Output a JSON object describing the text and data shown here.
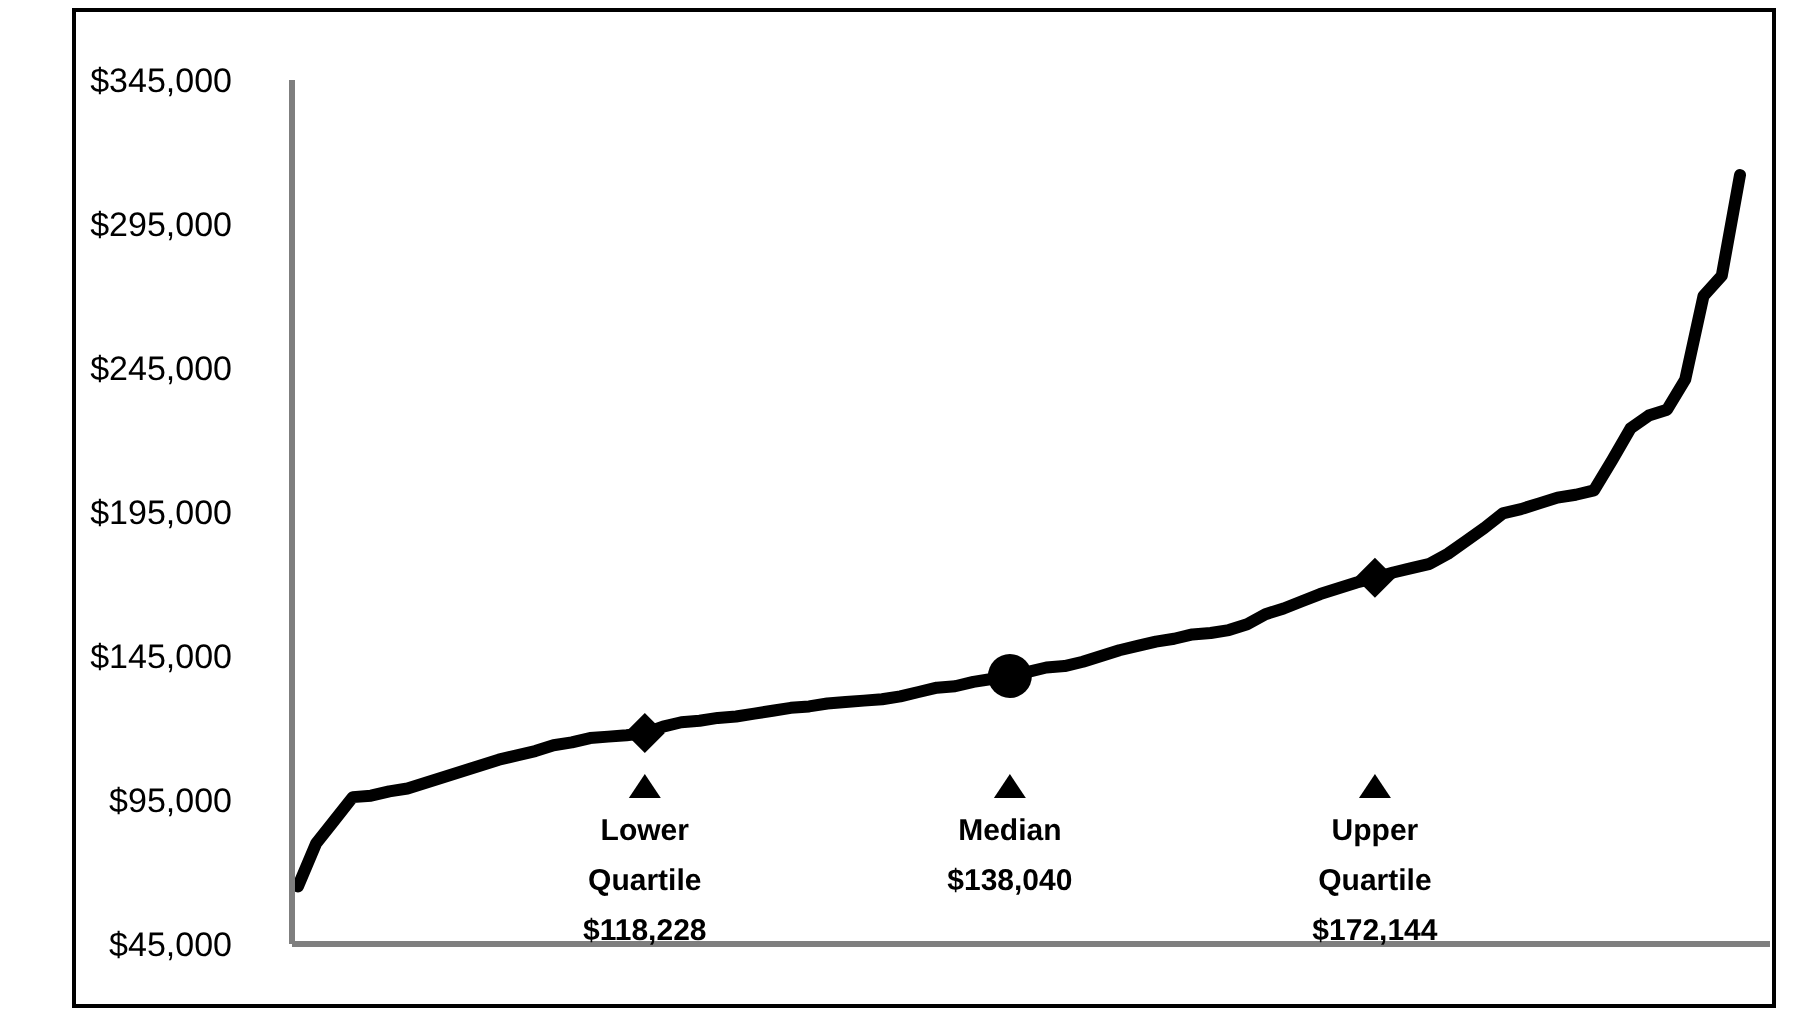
{
  "chart_data": {
    "type": "line",
    "categories": [
      null,
      null,
      null,
      null,
      null,
      null,
      null,
      null,
      null,
      null,
      null,
      null,
      null,
      null,
      null,
      null,
      null,
      null,
      null,
      null,
      null,
      null,
      null,
      null,
      null,
      null,
      null,
      null,
      null,
      null,
      null,
      null,
      null,
      null,
      null,
      null,
      null,
      null,
      null,
      null,
      null,
      null,
      null,
      null,
      null,
      null,
      null,
      null,
      null,
      null,
      null,
      null,
      null,
      null,
      null,
      null,
      null,
      null,
      null,
      null,
      null,
      null,
      null,
      null,
      null,
      null,
      null,
      null,
      null,
      null,
      null,
      null,
      null,
      null,
      null,
      null,
      null,
      null,
      null,
      null
    ],
    "ylim": [
      45000,
      345000
    ],
    "yticks": [
      {
        "value": 45000,
        "label": "$45,000"
      },
      {
        "value": 95000,
        "label": "$95,000"
      },
      {
        "value": 145000,
        "label": "$145,000"
      },
      {
        "value": 195000,
        "label": "$195,000"
      },
      {
        "value": 245000,
        "label": "$245,000"
      },
      {
        "value": 295000,
        "label": "$295,000"
      },
      {
        "value": 345000,
        "label": "$345,000"
      }
    ],
    "tick_labels": "y",
    "grid": false,
    "line_style": "solid",
    "marker": "none",
    "series": [
      {
        "color": "#000000",
        "values": [
          65000,
          80000,
          88000,
          96000,
          96500,
          98000,
          99000,
          101000,
          103000,
          105000,
          107000,
          109000,
          110500,
          112000,
          114000,
          115000,
          116500,
          117000,
          117500,
          118228,
          120500,
          122000,
          122500,
          123500,
          124000,
          125000,
          126000,
          127000,
          127500,
          128500,
          129000,
          129500,
          130000,
          131000,
          132500,
          134000,
          134500,
          136000,
          137000,
          138040,
          139500,
          141000,
          141500,
          143000,
          145000,
          147000,
          148500,
          150000,
          151000,
          152500,
          153000,
          154000,
          156000,
          159500,
          161500,
          164000,
          166500,
          168500,
          170500,
          172144,
          174000,
          175500,
          177000,
          180500,
          185000,
          189500,
          194500,
          196000,
          198000,
          200000,
          201000,
          202500,
          213000,
          224000,
          228500,
          230500,
          241000,
          270000,
          277000,
          312000
        ]
      },
      {
        "type": "scatter",
        "color": "#000000",
        "marker": "diamond",
        "values": [
          null,
          null,
          null,
          null,
          null,
          null,
          null,
          null,
          null,
          null,
          null,
          null,
          null,
          null,
          null,
          null,
          null,
          null,
          null,
          118228,
          null,
          null,
          null,
          null,
          null,
          null,
          null,
          null,
          null,
          null,
          null,
          null,
          null,
          null,
          null,
          null,
          null,
          null,
          null,
          null,
          null,
          null,
          null,
          null,
          null,
          null,
          null,
          null,
          null,
          null,
          null,
          null,
          null,
          null,
          null,
          null,
          null,
          null,
          null,
          172144,
          null,
          null,
          null,
          null,
          null,
          null,
          null,
          null,
          null,
          null,
          null,
          null,
          null,
          null,
          null,
          null,
          null,
          null,
          null,
          null
        ]
      },
      {
        "type": "scatter",
        "color": "#000000",
        "marker": "circle",
        "values": [
          null,
          null,
          null,
          null,
          null,
          null,
          null,
          null,
          null,
          null,
          null,
          null,
          null,
          null,
          null,
          null,
          null,
          null,
          null,
          null,
          null,
          null,
          null,
          null,
          null,
          null,
          null,
          null,
          null,
          null,
          null,
          null,
          null,
          null,
          null,
          null,
          null,
          null,
          null,
          138040,
          null,
          null,
          null,
          null,
          null,
          null,
          null,
          null,
          null,
          null,
          null,
          null,
          null,
          null,
          null,
          null,
          null,
          null,
          null,
          null,
          null,
          null,
          null,
          null,
          null,
          null,
          null,
          null,
          null,
          null,
          null,
          null,
          null,
          null,
          null,
          null,
          null,
          null,
          null,
          null
        ]
      }
    ],
    "annotations": [
      "Lower\nQuartile\n$118,228",
      "Median\n$138,040",
      "Upper\nQuartile\n$172,144"
    ]
  }
}
